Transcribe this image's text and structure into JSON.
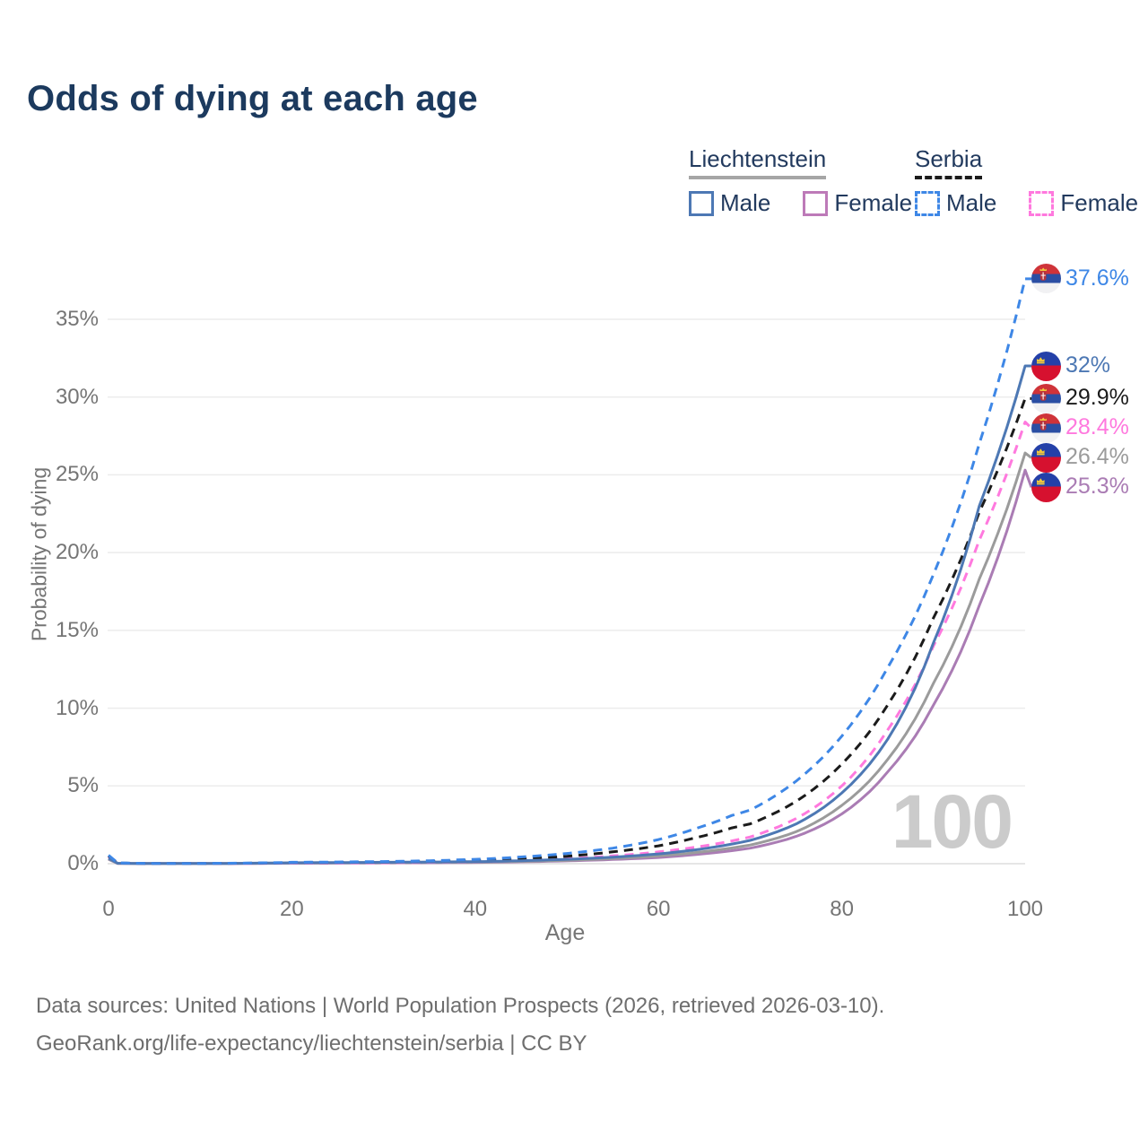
{
  "title": "Odds of dying at each age",
  "legend": {
    "groups": [
      {
        "name": "Liechtenstein",
        "line_style": "solid",
        "underline_color": "#a6a6a6",
        "items": [
          {
            "label": "Male",
            "color": "#4d78b4"
          },
          {
            "label": "Female",
            "color": "#bd7ab8"
          }
        ]
      },
      {
        "name": "Serbia",
        "line_style": "dashed",
        "underline_color": "#1b1b1b",
        "items": [
          {
            "label": "Male",
            "color": "#3e87e6"
          },
          {
            "label": "Female",
            "color": "#ff79de"
          }
        ]
      }
    ]
  },
  "chart_data": {
    "type": "line",
    "xlabel": "Age",
    "ylabel": "Probability of dying",
    "x_ticks": [
      0,
      20,
      40,
      60,
      80,
      100
    ],
    "y_ticks_pct": [
      0,
      5,
      10,
      15,
      20,
      25,
      30,
      35
    ],
    "xlim": [
      0,
      100
    ],
    "ylim_pct": [
      0,
      38
    ],
    "grid": true,
    "watermark": "100",
    "legend_position": "top-right",
    "series": [
      {
        "name": "Serbia male",
        "country": "Serbia",
        "sex": "male",
        "flag": "rs",
        "color": "#3e87e6",
        "dashed": true,
        "end_value_pct": 37.6,
        "end_label": "37.6%",
        "points_age_pct": [
          [
            0,
            0.55
          ],
          [
            1,
            0.05
          ],
          [
            5,
            0.02
          ],
          [
            10,
            0.02
          ],
          [
            15,
            0.04
          ],
          [
            20,
            0.09
          ],
          [
            25,
            0.11
          ],
          [
            30,
            0.14
          ],
          [
            35,
            0.19
          ],
          [
            40,
            0.28
          ],
          [
            45,
            0.43
          ],
          [
            50,
            0.66
          ],
          [
            55,
            1.0
          ],
          [
            60,
            1.55
          ],
          [
            64,
            2.25
          ],
          [
            68,
            3.1
          ],
          [
            70,
            3.45
          ],
          [
            75,
            5.3
          ],
          [
            80,
            8.2
          ],
          [
            85,
            12.6
          ],
          [
            90,
            18.6
          ],
          [
            95,
            27.0
          ],
          [
            100,
            37.6
          ]
        ]
      },
      {
        "name": "Liechtenstein male",
        "country": "Liechtenstein",
        "sex": "male",
        "flag": "li",
        "color": "#4d78b4",
        "dashed": false,
        "end_value_pct": 32.0,
        "end_label": "32%",
        "points_age_pct": [
          [
            0,
            0.35
          ],
          [
            1,
            0.03
          ],
          [
            5,
            0.011
          ],
          [
            10,
            0.011
          ],
          [
            15,
            0.03
          ],
          [
            20,
            0.06
          ],
          [
            30,
            0.09
          ],
          [
            40,
            0.13
          ],
          [
            50,
            0.28
          ],
          [
            55,
            0.42
          ],
          [
            60,
            0.63
          ],
          [
            65,
            0.97
          ],
          [
            70,
            1.5
          ],
          [
            75,
            2.55
          ],
          [
            80,
            4.55
          ],
          [
            85,
            8.0
          ],
          [
            90,
            14.2
          ],
          [
            95,
            23.0
          ],
          [
            100,
            32.0
          ]
        ]
      },
      {
        "name": "Serbia both sexes",
        "country": "Serbia",
        "sex": "both",
        "flag": "rs",
        "color": "#1b1b1b",
        "dashed": true,
        "end_value_pct": 29.9,
        "end_label": "29.9%",
        "points_age_pct": [
          [
            0,
            0.5
          ],
          [
            1,
            0.04
          ],
          [
            5,
            0.016
          ],
          [
            10,
            0.016
          ],
          [
            15,
            0.03
          ],
          [
            20,
            0.06
          ],
          [
            25,
            0.08
          ],
          [
            30,
            0.1
          ],
          [
            35,
            0.14
          ],
          [
            40,
            0.2
          ],
          [
            45,
            0.31
          ],
          [
            50,
            0.48
          ],
          [
            55,
            0.76
          ],
          [
            60,
            1.15
          ],
          [
            64,
            1.66
          ],
          [
            68,
            2.3
          ],
          [
            70,
            2.56
          ],
          [
            75,
            4.0
          ],
          [
            80,
            6.4
          ],
          [
            85,
            10.2
          ],
          [
            90,
            15.8
          ],
          [
            95,
            22.6
          ],
          [
            100,
            29.9
          ]
        ]
      },
      {
        "name": "Serbia female",
        "country": "Serbia",
        "sex": "female",
        "flag": "rs",
        "color": "#ff79de",
        "dashed": true,
        "end_value_pct": 28.4,
        "end_label": "28.4%",
        "points_age_pct": [
          [
            0,
            0.45
          ],
          [
            1,
            0.035
          ],
          [
            5,
            0.013
          ],
          [
            10,
            0.013
          ],
          [
            15,
            0.02
          ],
          [
            20,
            0.032
          ],
          [
            30,
            0.06
          ],
          [
            40,
            0.13
          ],
          [
            45,
            0.2
          ],
          [
            50,
            0.32
          ],
          [
            55,
            0.5
          ],
          [
            60,
            0.76
          ],
          [
            65,
            1.15
          ],
          [
            70,
            1.72
          ],
          [
            75,
            2.9
          ],
          [
            80,
            5.0
          ],
          [
            85,
            8.6
          ],
          [
            90,
            14.0
          ],
          [
            95,
            20.8
          ],
          [
            100,
            28.4
          ]
        ]
      },
      {
        "name": "Liechtenstein both sexes",
        "country": "Liechtenstein",
        "sex": "both",
        "flag": "li",
        "color": "#9b9b9b",
        "dashed": false,
        "end_value_pct": 26.4,
        "end_label": "26.4%",
        "points_age_pct": [
          [
            0,
            0.3
          ],
          [
            1,
            0.025
          ],
          [
            5,
            0.01
          ],
          [
            10,
            0.01
          ],
          [
            15,
            0.022
          ],
          [
            20,
            0.045
          ],
          [
            30,
            0.07
          ],
          [
            40,
            0.1
          ],
          [
            50,
            0.22
          ],
          [
            60,
            0.5
          ],
          [
            65,
            0.78
          ],
          [
            70,
            1.2
          ],
          [
            75,
            2.05
          ],
          [
            80,
            3.75
          ],
          [
            85,
            6.7
          ],
          [
            90,
            11.6
          ],
          [
            95,
            18.3
          ],
          [
            100,
            26.4
          ]
        ]
      },
      {
        "name": "Liechtenstein female",
        "country": "Liechtenstein",
        "sex": "female",
        "flag": "li",
        "color": "#aa7cb4",
        "dashed": false,
        "end_value_pct": 25.3,
        "end_label": "25.3%",
        "points_age_pct": [
          [
            0,
            0.28
          ],
          [
            1,
            0.02
          ],
          [
            5,
            0.009
          ],
          [
            10,
            0.009
          ],
          [
            15,
            0.016
          ],
          [
            20,
            0.03
          ],
          [
            30,
            0.05
          ],
          [
            40,
            0.08
          ],
          [
            50,
            0.18
          ],
          [
            60,
            0.4
          ],
          [
            65,
            0.64
          ],
          [
            70,
            1.0
          ],
          [
            75,
            1.75
          ],
          [
            80,
            3.2
          ],
          [
            85,
            5.9
          ],
          [
            90,
            10.2
          ],
          [
            95,
            16.6
          ],
          [
            100,
            25.3
          ]
        ]
      }
    ]
  },
  "footer": {
    "line1": "Data sources: United Nations | World Population Prospects (2026, retrieved 2026-03-10).",
    "line2": "GeoRank.org/life-expectancy/liechtenstein/serbia | CC BY"
  }
}
